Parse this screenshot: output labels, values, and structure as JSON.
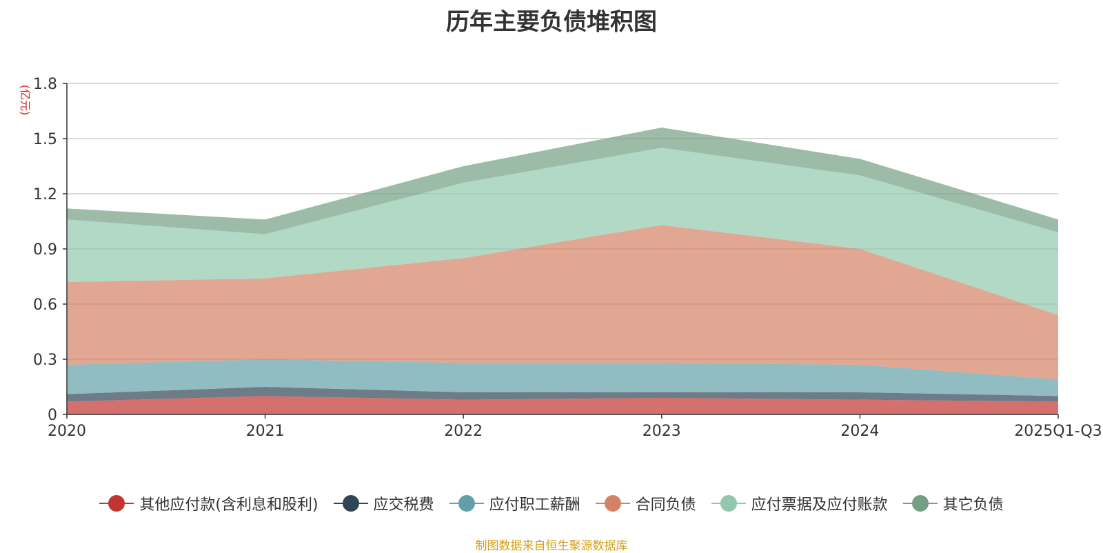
{
  "chart_data": {
    "type": "area",
    "stacked": true,
    "title": "历年主要负债堆积图",
    "ylabel": "(亿元)",
    "xlabel": "",
    "ylim": [
      0,
      1.8
    ],
    "yticks": [
      0,
      0.3,
      0.6,
      0.9,
      1.2,
      1.5,
      1.8
    ],
    "ytick_labels": [
      "0",
      "0.3",
      "0.6",
      "0.9",
      "1.2",
      "1.5",
      "1.8"
    ],
    "grid": true,
    "legend_position": "bottom",
    "categories": [
      "2020",
      "2021",
      "2022",
      "2023",
      "2024",
      "2025Q1-Q3"
    ],
    "series": [
      {
        "name": "其他应付款(含利息和股利)",
        "color": "#c23531",
        "values": [
          0.07,
          0.1,
          0.08,
          0.09,
          0.08,
          0.07
        ]
      },
      {
        "name": "应交税费",
        "color": "#2f4554",
        "values": [
          0.04,
          0.05,
          0.04,
          0.03,
          0.04,
          0.03
        ]
      },
      {
        "name": "应付职工薪酬",
        "color": "#61a0a8",
        "values": [
          0.16,
          0.15,
          0.16,
          0.16,
          0.15,
          0.09
        ]
      },
      {
        "name": "合同负债",
        "color": "#d48265",
        "values": [
          0.45,
          0.44,
          0.57,
          0.75,
          0.63,
          0.35
        ]
      },
      {
        "name": "应付票据及应付账款",
        "color": "#91c7ae",
        "values": [
          0.34,
          0.24,
          0.41,
          0.42,
          0.4,
          0.45
        ]
      },
      {
        "name": "其它负债",
        "color": "#749f83",
        "values": [
          0.06,
          0.08,
          0.09,
          0.11,
          0.09,
          0.07
        ]
      }
    ]
  },
  "source": {
    "text": "制图数据来自恒生聚源数据库",
    "color": "#d4a017"
  }
}
